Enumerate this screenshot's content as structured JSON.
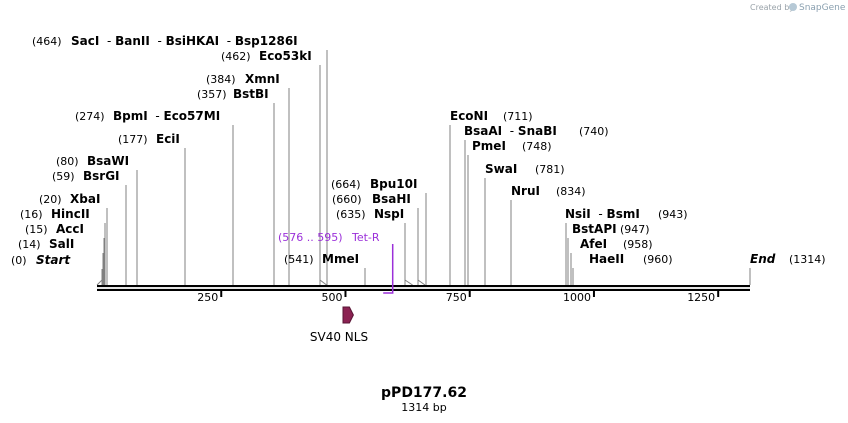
{
  "branding": {
    "created_by": "Created by",
    "app_name": "SnapGene"
  },
  "map": {
    "title": "pPD177.62",
    "length_label": "1314 bp",
    "length_bp": 1314,
    "axis_ticks": [
      "250",
      "500",
      "750",
      "1000",
      "1250"
    ],
    "axis_tick_values": [
      250,
      500,
      750,
      1000,
      1250
    ],
    "colors": {
      "backbone": "#000000",
      "site_line": "#808080",
      "primer": "#9b30d9",
      "feature": "#8b2252"
    },
    "sites": [
      {
        "pos_label": "(0)",
        "names": [
          "Start"
        ],
        "italic": true,
        "pos": 0
      },
      {
        "pos_label": "(14)",
        "names": [
          "SalI"
        ],
        "pos": 14
      },
      {
        "pos_label": "(15)",
        "names": [
          "AccI"
        ],
        "pos": 15
      },
      {
        "pos_label": "(16)",
        "names": [
          "HincII"
        ],
        "pos": 16
      },
      {
        "pos_label": "(20)",
        "names": [
          "XbaI"
        ],
        "pos": 20
      },
      {
        "pos_label": "(59)",
        "names": [
          "BsrGI"
        ],
        "pos": 59
      },
      {
        "pos_label": "(80)",
        "names": [
          "BsaWI"
        ],
        "pos": 80
      },
      {
        "pos_label": "(177)",
        "names": [
          "EciI"
        ],
        "pos": 177
      },
      {
        "pos_label": "(274)",
        "names": [
          "BpmI",
          "Eco57MI"
        ],
        "pos": 274
      },
      {
        "pos_label": "(357)",
        "names": [
          "BstBI"
        ],
        "pos": 357
      },
      {
        "pos_label": "(384)",
        "names": [
          "XmnI"
        ],
        "pos": 384
      },
      {
        "pos_label": "(462)",
        "names": [
          "Eco53kI"
        ],
        "pos": 462
      },
      {
        "pos_label": "(464)",
        "names": [
          "SacI",
          "BanII",
          "BsiHKAI",
          "Bsp1286I"
        ],
        "pos": 464
      },
      {
        "pos_label": "(541)",
        "names": [
          "MmeI"
        ],
        "pos": 541
      },
      {
        "pos_label": "(635)",
        "names": [
          "NspI"
        ],
        "pos": 635
      },
      {
        "pos_label": "(660)",
        "names": [
          "BsaHI"
        ],
        "pos": 660
      },
      {
        "pos_label": "(664)",
        "names": [
          "Bpu10I"
        ],
        "pos": 664
      },
      {
        "pos_label": "(711)",
        "names": [
          "EcoNI"
        ],
        "pos": 711
      },
      {
        "pos_label": "(740)",
        "names": [
          "BsaAI",
          "SnaBI"
        ],
        "pos": 740
      },
      {
        "pos_label": "(748)",
        "names": [
          "PmeI"
        ],
        "pos": 748
      },
      {
        "pos_label": "(781)",
        "names": [
          "SwaI"
        ],
        "pos": 781
      },
      {
        "pos_label": "(834)",
        "names": [
          "NruI"
        ],
        "pos": 834
      },
      {
        "pos_label": "(943)",
        "names": [
          "NsiI",
          "BsmI"
        ],
        "pos": 943
      },
      {
        "pos_label": "(947)",
        "names": [
          "BstAPI"
        ],
        "pos": 947
      },
      {
        "pos_label": "(958)",
        "names": [
          "AfeI"
        ],
        "pos": 958
      },
      {
        "pos_label": "(960)",
        "names": [
          "HaeII"
        ],
        "pos": 960
      },
      {
        "pos_label": "(1314)",
        "names": [
          "End"
        ],
        "italic": true,
        "pos": 1314
      }
    ],
    "primer": {
      "name": "Tet-R",
      "range_label": "(576 .. 595)",
      "start": 576,
      "end": 595
    },
    "feature": {
      "name": "SV40 NLS",
      "start": 495,
      "end": 516
    }
  }
}
